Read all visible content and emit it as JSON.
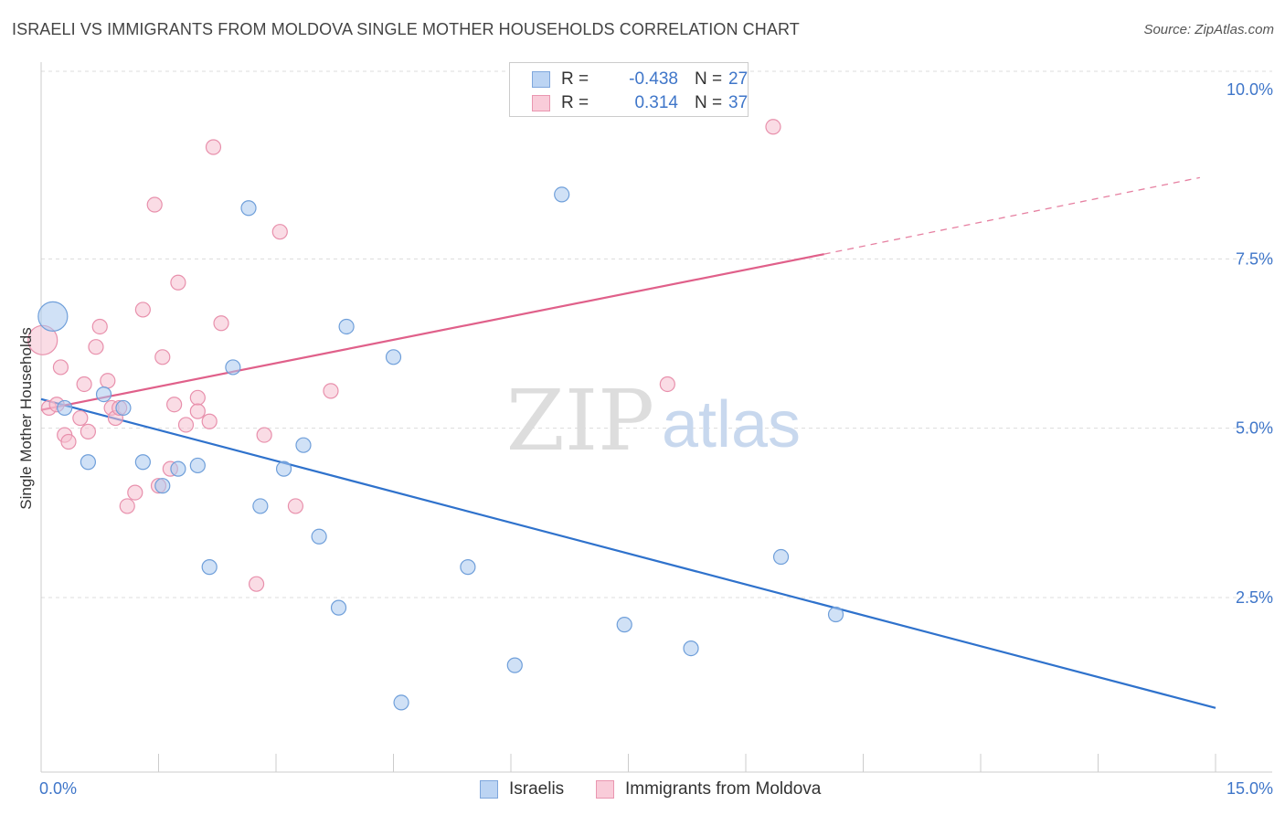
{
  "title": "ISRAELI VS IMMIGRANTS FROM MOLDOVA SINGLE MOTHER HOUSEHOLDS CORRELATION CHART",
  "source": "Source: ZipAtlas.com",
  "watermark": {
    "zip": "ZIP",
    "atlas": "atlas"
  },
  "legend": {
    "r_label": "R =",
    "n_label": "N =",
    "rows": [
      {
        "r": "-0.438",
        "n": "27"
      },
      {
        "r": "0.314",
        "n": "37"
      }
    ]
  },
  "bottom_legend": [
    "Israelis",
    "Immigrants from Moldova"
  ],
  "chart_data": {
    "type": "scatter",
    "title": "ISRAELI VS IMMIGRANTS FROM MOLDOVA SINGLE MOTHER HOUSEHOLDS CORRELATION CHART",
    "xlabel": "",
    "ylabel": "Single Mother Households",
    "xlim": [
      0,
      15
    ],
    "ylim": [
      0,
      10.2
    ],
    "x_tick_labels": [
      "0.0%",
      "15.0%"
    ],
    "y_ticks": [
      2.5,
      5.0,
      7.5,
      10.0
    ],
    "y_tick_labels": [
      "2.5%",
      "5.0%",
      "7.5%",
      "10.0%"
    ],
    "grid": true,
    "legend_position": "top-center",
    "series": [
      {
        "name": "Israelis",
        "color": "#a9c8ef",
        "stroke": "#6f9fda",
        "trend_color": "#2f72cc",
        "trend": {
          "x0": 0.0,
          "y0": 5.43,
          "x1": 15.0,
          "y1": 0.87
        },
        "points": [
          {
            "x": 0.15,
            "y": 6.65,
            "big": true
          },
          {
            "x": 0.3,
            "y": 5.3
          },
          {
            "x": 0.6,
            "y": 4.5
          },
          {
            "x": 0.8,
            "y": 5.5
          },
          {
            "x": 1.05,
            "y": 5.3
          },
          {
            "x": 1.3,
            "y": 4.5
          },
          {
            "x": 1.55,
            "y": 4.15
          },
          {
            "x": 1.75,
            "y": 4.4
          },
          {
            "x": 2.0,
            "y": 4.45
          },
          {
            "x": 2.15,
            "y": 2.95
          },
          {
            "x": 2.45,
            "y": 5.9
          },
          {
            "x": 2.65,
            "y": 8.25
          },
          {
            "x": 2.8,
            "y": 3.85
          },
          {
            "x": 3.1,
            "y": 4.4
          },
          {
            "x": 3.35,
            "y": 4.75
          },
          {
            "x": 3.55,
            "y": 3.4
          },
          {
            "x": 3.8,
            "y": 2.35
          },
          {
            "x": 3.9,
            "y": 6.5
          },
          {
            "x": 4.5,
            "y": 6.05
          },
          {
            "x": 4.6,
            "y": 0.95
          },
          {
            "x": 5.45,
            "y": 2.95
          },
          {
            "x": 6.05,
            "y": 1.5
          },
          {
            "x": 6.65,
            "y": 8.45
          },
          {
            "x": 7.45,
            "y": 2.1
          },
          {
            "x": 8.3,
            "y": 1.75
          },
          {
            "x": 9.45,
            "y": 3.1
          },
          {
            "x": 10.15,
            "y": 2.25
          }
        ]
      },
      {
        "name": "Immigrants from Moldova",
        "color": "#f6bfd0",
        "stroke": "#e890ac",
        "trend_color": "#e0608a",
        "trend": {
          "x0": 0.0,
          "y0": 5.27,
          "x1": 10.0,
          "y1": 7.57
        },
        "trend_dashed_to": {
          "x": 14.8,
          "y": 8.7
        },
        "points": [
          {
            "x": 0.02,
            "y": 6.3,
            "big": true
          },
          {
            "x": 0.1,
            "y": 5.3
          },
          {
            "x": 0.2,
            "y": 5.35
          },
          {
            "x": 0.25,
            "y": 5.9
          },
          {
            "x": 0.3,
            "y": 4.9
          },
          {
            "x": 0.35,
            "y": 4.8
          },
          {
            "x": 0.5,
            "y": 5.15
          },
          {
            "x": 0.55,
            "y": 5.65
          },
          {
            "x": 0.6,
            "y": 4.95
          },
          {
            "x": 0.7,
            "y": 6.2
          },
          {
            "x": 0.75,
            "y": 6.5
          },
          {
            "x": 0.85,
            "y": 5.7
          },
          {
            "x": 0.9,
            "y": 5.3
          },
          {
            "x": 0.95,
            "y": 5.15
          },
          {
            "x": 1.0,
            "y": 5.3
          },
          {
            "x": 1.1,
            "y": 3.85
          },
          {
            "x": 1.2,
            "y": 4.05
          },
          {
            "x": 1.3,
            "y": 6.75
          },
          {
            "x": 1.45,
            "y": 8.3
          },
          {
            "x": 1.5,
            "y": 4.15
          },
          {
            "x": 1.55,
            "y": 6.05
          },
          {
            "x": 1.65,
            "y": 4.4
          },
          {
            "x": 1.7,
            "y": 5.35
          },
          {
            "x": 1.75,
            "y": 7.15
          },
          {
            "x": 1.85,
            "y": 5.05
          },
          {
            "x": 2.0,
            "y": 5.45
          },
          {
            "x": 2.0,
            "y": 5.25
          },
          {
            "x": 2.15,
            "y": 5.1
          },
          {
            "x": 2.2,
            "y": 9.15
          },
          {
            "x": 2.3,
            "y": 6.55
          },
          {
            "x": 2.75,
            "y": 2.7
          },
          {
            "x": 2.85,
            "y": 4.9
          },
          {
            "x": 3.05,
            "y": 7.9
          },
          {
            "x": 3.25,
            "y": 3.85
          },
          {
            "x": 3.7,
            "y": 5.55
          },
          {
            "x": 8.0,
            "y": 5.65
          },
          {
            "x": 9.35,
            "y": 9.45
          }
        ]
      }
    ]
  }
}
